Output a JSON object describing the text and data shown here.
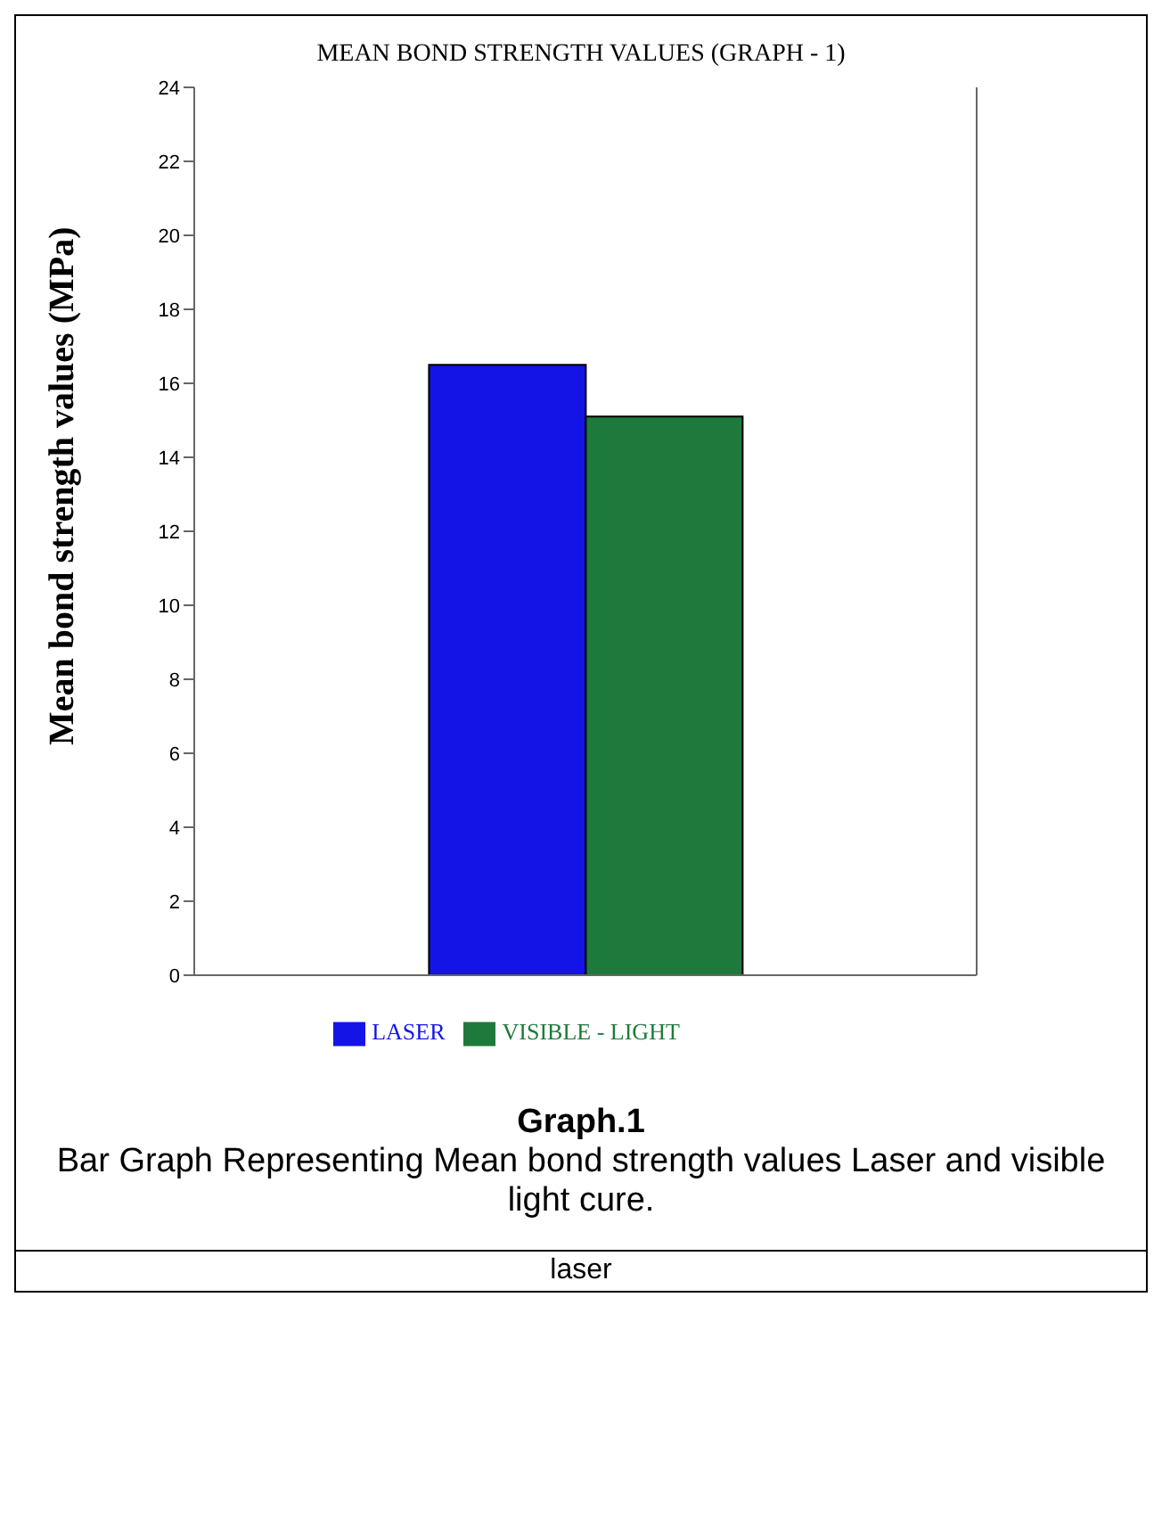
{
  "chart_data": {
    "type": "bar",
    "title": "MEAN BOND STRENGTH VALUES (GRAPH - 1)",
    "ylabel": "Mean bond strength values (MPa)",
    "categories": [
      null
    ],
    "series": [
      {
        "name": "LASER",
        "color": "#1414e6",
        "values": [
          16.5
        ]
      },
      {
        "name": "VISIBLE - LIGHT",
        "color": "#1e7a3c",
        "values": [
          15.1
        ]
      }
    ],
    "ylim": [
      0,
      24
    ],
    "yticks": [
      0,
      2,
      4,
      6,
      8,
      10,
      12,
      14,
      16,
      18,
      20,
      22,
      24
    ],
    "grid": false,
    "legend": "bottom",
    "annotations": [
      "Graph.1",
      "Bar Graph Representing Mean bond strength values Laser and visible light cure.",
      "laser"
    ]
  }
}
